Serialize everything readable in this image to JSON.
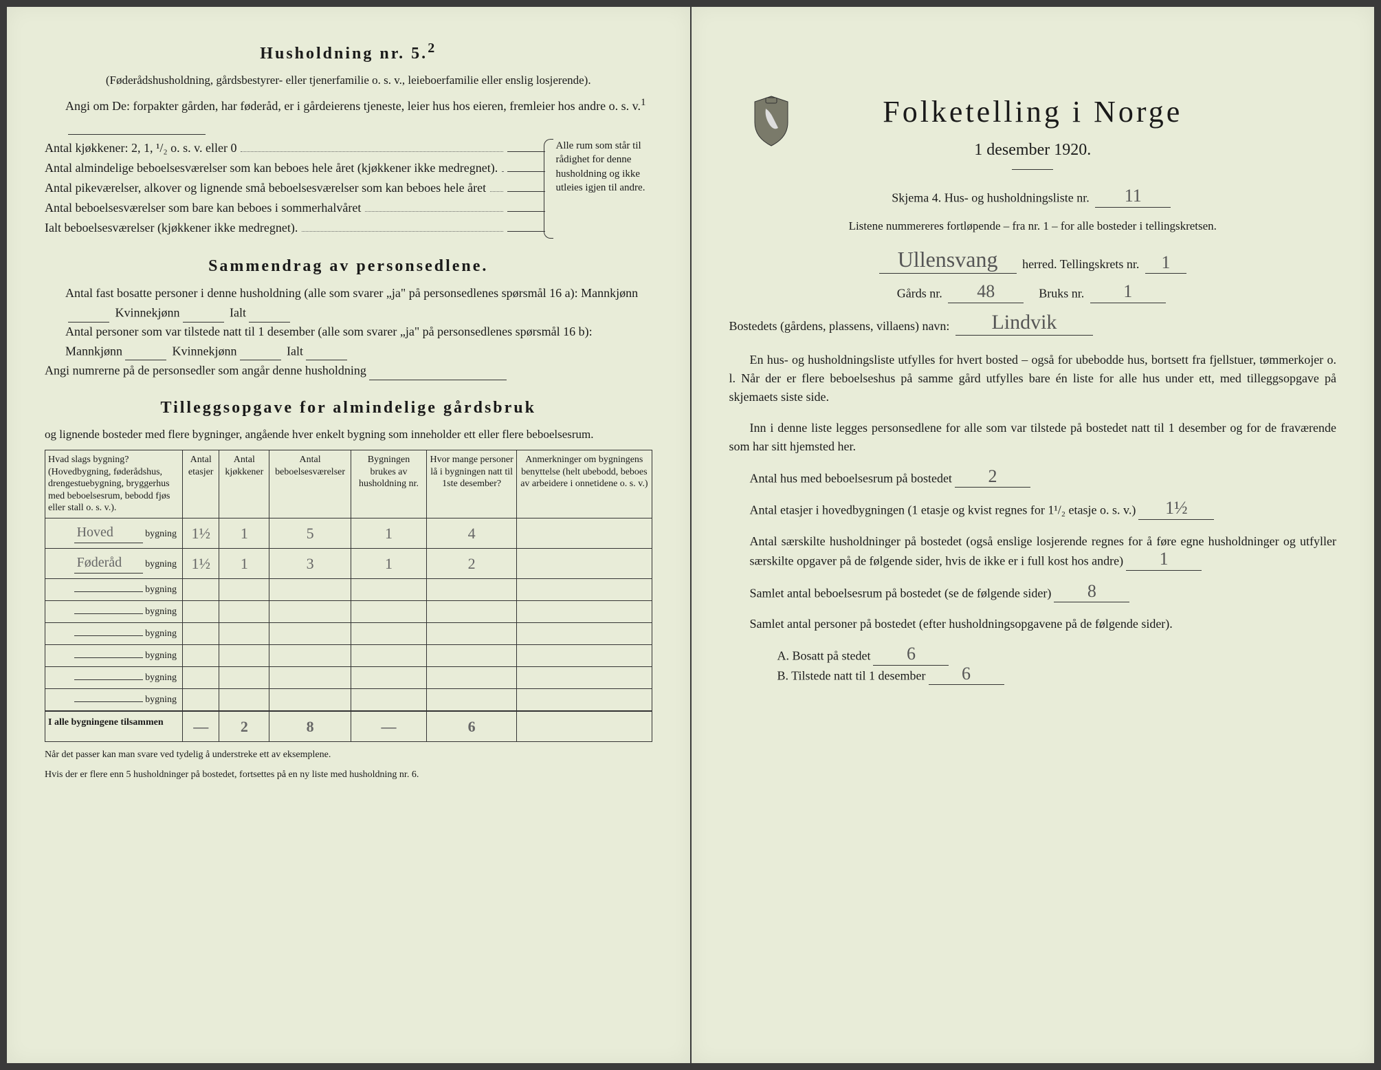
{
  "left": {
    "h1": "Husholdning nr. 5.",
    "h1_sup": "2",
    "sub1": "(Føderådshusholdning, gårdsbestyrer- eller tjenerfamilie o. s. v., leieboerfamilie eller enslig losjerende).",
    "angi": "Angi om De:  forpakter gården, har føderåd, er i gårdeierens tjeneste, leier hus hos eieren, fremleier hos andre o. s. v.",
    "angi_sup": "1",
    "kitchen_lines": [
      "Antal kjøkkener: 2, 1, ¹/₂ o. s. v. eller 0",
      "Antal almindelige beboelsesværelser som kan beboes hele året (kjøkkener ikke medregnet).",
      "Antal pikeværelser, alkover og lignende små beboelsesværelser som kan beboes hele året",
      "Antal beboelsesværelser som bare kan beboes i sommerhalvåret",
      "Ialt beboelsesværelser (kjøkkener ikke medregnet)."
    ],
    "kitchen_note": "Alle rum som står til rådighet for denne husholdning og ikke utleies igjen til andre.",
    "h2": "Sammendrag av personsedlene.",
    "s1": "Antal fast bosatte personer i denne husholdning (alle som svarer „ja\" på personsedlenes spørsmål 16 a): Mannkjønn",
    "s1b": "Kvinnekjønn",
    "s1c": "Ialt",
    "s2": "Antal personer som var tilstede natt til 1 desember (alle som svarer „ja\" på personsedlenes spørsmål 16 b): Mannkjønn",
    "s3": "Angi numrerne på de personsedler som angår denne husholdning",
    "h3": "Tilleggsopgave for almindelige gårdsbruk",
    "h3sub": "og lignende bosteder med flere bygninger, angående hver enkelt bygning som inneholder ett eller flere beboelsesrum.",
    "table": {
      "headers": [
        "Hvad slags bygning?\n(Hovedbygning, føderådshus, drengestuebygning, bryggerhus med beboelsesrum, bebodd fjøs eller stall o. s. v.).",
        "Antal etasjer",
        "Antal kjøkkener",
        "Antal beboelsesværelser",
        "Bygningen brukes av husholdning nr.",
        "Hvor mange personer lå i bygningen natt til 1ste desember?",
        "Anmerkninger om bygningens benyttelse (helt ubebodd, beboes av arbeidere i onnetidene o. s. v.)"
      ],
      "rows": [
        {
          "label": "Hoved",
          "suf": "bygning",
          "v": [
            "1½",
            "1",
            "5",
            "1",
            "4",
            ""
          ]
        },
        {
          "label": "Føderåd",
          "suf": "bygning",
          "v": [
            "1½",
            "1",
            "3",
            "1",
            "2",
            ""
          ]
        },
        {
          "label": "",
          "suf": "bygning",
          "v": [
            "",
            "",
            "",
            "",
            "",
            ""
          ]
        },
        {
          "label": "",
          "suf": "bygning",
          "v": [
            "",
            "",
            "",
            "",
            "",
            ""
          ]
        },
        {
          "label": "",
          "suf": "bygning",
          "v": [
            "",
            "",
            "",
            "",
            "",
            ""
          ]
        },
        {
          "label": "",
          "suf": "bygning",
          "v": [
            "",
            "",
            "",
            "",
            "",
            ""
          ]
        },
        {
          "label": "",
          "suf": "bygning",
          "v": [
            "",
            "",
            "",
            "",
            "",
            ""
          ]
        },
        {
          "label": "",
          "suf": "bygning",
          "v": [
            "",
            "",
            "",
            "",
            "",
            ""
          ]
        }
      ],
      "total_label": "I alle bygningene tilsammen",
      "total": [
        "—",
        "2",
        "8",
        "—",
        "6",
        ""
      ]
    },
    "foot1": "Når det passer kan man svare ved tydelig å understreke ett av eksemplene.",
    "foot2": "Hvis der er flere enn 5 husholdninger på bostedet, fortsettes på en ny liste med husholdning nr. 6."
  },
  "right": {
    "title": "Folketelling i Norge",
    "date": "1 desember 1920.",
    "schema_a": "Skjema 4.  Hus- og husholdningsliste nr.",
    "schema_nr": "11",
    "list_note": "Listene nummereres fortløpende – fra nr. 1 – for alle bosteder i tellingskretsen.",
    "herred_val": "Ullensvang",
    "herred_lbl": "herred.  Tellingskrets nr.",
    "krets_nr": "1",
    "gard_lbl": "Gårds nr.",
    "gard_nr": "48",
    "bruk_lbl": "Bruks nr.",
    "bruk_nr": "1",
    "bosted_lbl": "Bostedets (gårdens, plassens, villaens) navn:",
    "bosted_val": "Lindvik",
    "p1": "En hus- og husholdningsliste utfylles for hvert bosted – også for ubebodde hus, bortsett fra fjellstuer, tømmerkojer o. l.  Når der er flere beboelseshus på samme gård utfylles bare én liste for alle hus under ett, med tilleggsopgave på skjemaets siste side.",
    "p2": "Inn i denne liste legges personsedlene for alle som var tilstede på bostedet natt til 1 desember og for de fraværende som har sitt hjemsted her.",
    "q1": "Antal hus med beboelsesrum på bostedet",
    "q1v": "2",
    "q2a": "Antal etasjer i hovedbygningen (1 etasje og kvist regnes for 1¹/₂ etasje o. s. v.)",
    "q2v": "1½",
    "q3": "Antal særskilte husholdninger på bostedet (også enslige losjerende regnes for å føre egne husholdninger og utfyller særskilte opgaver på de følgende sider, hvis de ikke er i full kost hos andre)",
    "q3v": "1",
    "q4": "Samlet antal beboelsesrum på bostedet (se de følgende sider)",
    "q4v": "8",
    "q5": "Samlet antal personer på bostedet (efter husholdningsopgavene på de følgende sider).",
    "qA": "A.  Bosatt på stedet",
    "qAv": "6",
    "qB": "B.  Tilstede natt til 1 desember",
    "qBv": "6"
  }
}
